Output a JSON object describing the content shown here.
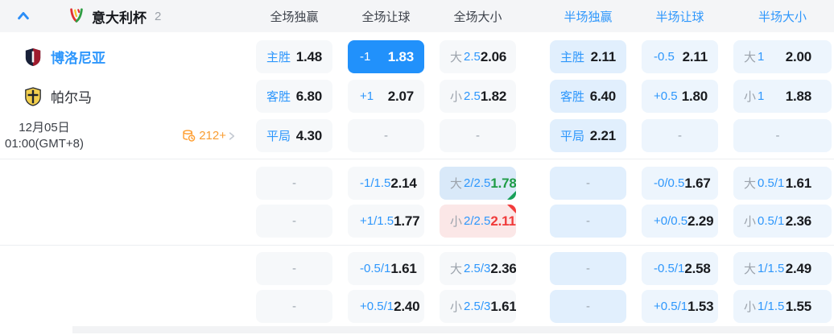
{
  "ui": {
    "dash": "-"
  },
  "colors": {
    "accent": "#2e97fc",
    "selected_bg": "#2191fb",
    "up": "#1f9c46",
    "down": "#f03a3a",
    "more": "#f99d33"
  },
  "header": {
    "league": "意大利杯",
    "match_count": "2",
    "columns": [
      {
        "label": "全场独赢",
        "scope": "full"
      },
      {
        "label": "全场让球",
        "scope": "full"
      },
      {
        "label": "全场大小",
        "scope": "full"
      },
      {
        "label": "半场独赢",
        "scope": "half"
      },
      {
        "label": "半场让球",
        "scope": "half"
      },
      {
        "label": "半场大小",
        "scope": "half"
      }
    ]
  },
  "match": {
    "home_team": "博洛尼亚",
    "away_team": "帕尔马",
    "date": "12月05日",
    "time": "01:00(GMT+8)",
    "more_markets": "212+"
  },
  "odds_rows": [
    {
      "name": "home-main",
      "cells": [
        {
          "label": "主胜",
          "value": "1.48",
          "variant": "ft"
        },
        {
          "line": "-1",
          "value": "1.83",
          "variant": "ft-sel"
        },
        {
          "prefix": "大",
          "line": "2.5",
          "value": "2.06",
          "variant": "ft"
        },
        {
          "label": "主胜",
          "value": "2.11",
          "variant": "ht-main"
        },
        {
          "line": "-0.5",
          "value": "2.11",
          "variant": "ht"
        },
        {
          "prefix": "大",
          "line": "1",
          "value": "2.00",
          "variant": "ht"
        }
      ]
    },
    {
      "name": "away-main",
      "cells": [
        {
          "label": "客胜",
          "value": "6.80",
          "variant": "ft"
        },
        {
          "line": "+1",
          "value": "2.07",
          "variant": "ft"
        },
        {
          "prefix": "小",
          "line": "2.5",
          "value": "1.82",
          "variant": "ft"
        },
        {
          "label": "客胜",
          "value": "6.40",
          "variant": "ht-main"
        },
        {
          "line": "+0.5",
          "value": "1.80",
          "variant": "ht"
        },
        {
          "prefix": "小",
          "line": "1",
          "value": "1.88",
          "variant": "ht"
        }
      ]
    },
    {
      "name": "draw-main",
      "cells": [
        {
          "label": "平局",
          "value": "4.30",
          "variant": "ft"
        },
        {
          "dash": true,
          "variant": "ft"
        },
        {
          "dash": true,
          "variant": "ft"
        },
        {
          "label": "平局",
          "value": "2.21",
          "variant": "ht-main"
        },
        {
          "dash": true,
          "variant": "ht"
        },
        {
          "dash": true,
          "variant": "ht"
        }
      ]
    },
    {
      "name": "alt-1",
      "cells": [
        {
          "dash": true,
          "variant": "ft"
        },
        {
          "line": "-1/1.5",
          "value": "2.14",
          "variant": "ft"
        },
        {
          "prefix": "大",
          "line": "2/2.5",
          "value": "1.78",
          "variant": "up"
        },
        {
          "dash": true,
          "variant": "ht-main"
        },
        {
          "line": "-0/0.5",
          "value": "1.67",
          "variant": "ht"
        },
        {
          "prefix": "大",
          "line": "0.5/1",
          "value": "1.61",
          "variant": "ht"
        }
      ]
    },
    {
      "name": "alt-2",
      "cells": [
        {
          "dash": true,
          "variant": "ft"
        },
        {
          "line": "+1/1.5",
          "value": "1.77",
          "variant": "ft"
        },
        {
          "prefix": "小",
          "line": "2/2.5",
          "value": "2.11",
          "variant": "down"
        },
        {
          "dash": true,
          "variant": "ht-main"
        },
        {
          "line": "+0/0.5",
          "value": "2.29",
          "variant": "ht"
        },
        {
          "prefix": "小",
          "line": "0.5/1",
          "value": "2.36",
          "variant": "ht"
        }
      ]
    },
    {
      "name": "alt-3",
      "cells": [
        {
          "dash": true,
          "variant": "ft"
        },
        {
          "line": "-0.5/1",
          "value": "1.61",
          "variant": "ft"
        },
        {
          "prefix": "大",
          "line": "2.5/3",
          "value": "2.36",
          "variant": "ft"
        },
        {
          "dash": true,
          "variant": "ht-main"
        },
        {
          "line": "-0.5/1",
          "value": "2.58",
          "variant": "ht"
        },
        {
          "prefix": "大",
          "line": "1/1.5",
          "value": "2.49",
          "variant": "ht"
        }
      ]
    },
    {
      "name": "alt-4",
      "cells": [
        {
          "dash": true,
          "variant": "ft"
        },
        {
          "line": "+0.5/1",
          "value": "2.40",
          "variant": "ft"
        },
        {
          "prefix": "小",
          "line": "2.5/3",
          "value": "1.61",
          "variant": "ft"
        },
        {
          "dash": true,
          "variant": "ht-main"
        },
        {
          "line": "+0.5/1",
          "value": "1.53",
          "variant": "ht"
        },
        {
          "prefix": "小",
          "line": "1/1.5",
          "value": "1.55",
          "variant": "ht"
        }
      ]
    }
  ],
  "sections": [
    [
      0,
      1,
      2
    ],
    [
      3,
      4
    ],
    [
      5,
      6
    ]
  ]
}
